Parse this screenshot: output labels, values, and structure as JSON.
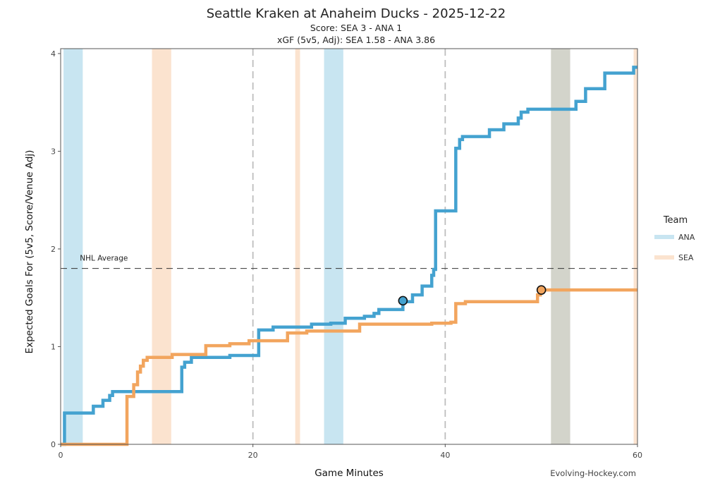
{
  "chart_data": {
    "type": "line",
    "title": "Seattle Kraken at Anaheim Ducks - 2025-12-22",
    "subtitle": "Score: SEA 3 - ANA 1",
    "subtitle2": "xGF (5v5, Adj): SEA 1.58 - ANA 3.86",
    "xlabel": "Game Minutes",
    "ylabel": "Expected Goals For (5v5, Score/Venue Adj)",
    "xlim": [
      0,
      60
    ],
    "ylim": [
      0,
      4.05
    ],
    "xticks": [
      0,
      20,
      40,
      60
    ],
    "yticks": [
      0,
      1,
      2,
      3,
      4
    ],
    "period_lines": [
      20,
      40
    ],
    "reference_line": {
      "label": "NHL Average",
      "y": 1.8
    },
    "legend": {
      "title": "Team",
      "position": "right"
    },
    "source": "Evolving-Hockey.com",
    "colors": {
      "ANA": "#44a2d0",
      "SEA": "#f2a55e",
      "ANA_band": "#c8e5f1",
      "SEA_band": "#fbe3cf",
      "both_band": "#d3d4cb"
    },
    "series": [
      {
        "name": "ANA",
        "steps": [
          [
            0,
            0
          ],
          [
            0.4,
            0.32
          ],
          [
            3.4,
            0.39
          ],
          [
            4.4,
            0.45
          ],
          [
            5.1,
            0.5
          ],
          [
            5.4,
            0.54
          ],
          [
            12.6,
            0.79
          ],
          [
            12.9,
            0.84
          ],
          [
            13.6,
            0.89
          ],
          [
            17.6,
            0.91
          ],
          [
            20.6,
            1.17
          ],
          [
            22.1,
            1.2
          ],
          [
            26.1,
            1.23
          ],
          [
            28.1,
            1.24
          ],
          [
            29.6,
            1.29
          ],
          [
            31.6,
            1.31
          ],
          [
            32.6,
            1.34
          ],
          [
            33.1,
            1.38
          ],
          [
            35.6,
            1.46
          ],
          [
            36.6,
            1.53
          ],
          [
            37.6,
            1.62
          ],
          [
            38.6,
            1.73
          ],
          [
            38.8,
            1.79
          ],
          [
            39.0,
            2.39
          ],
          [
            41.1,
            3.03
          ],
          [
            41.5,
            3.12
          ],
          [
            41.8,
            3.15
          ],
          [
            44.6,
            3.22
          ],
          [
            46.1,
            3.28
          ],
          [
            47.6,
            3.34
          ],
          [
            47.9,
            3.4
          ],
          [
            48.6,
            3.43
          ],
          [
            53.6,
            3.51
          ],
          [
            54.6,
            3.64
          ],
          [
            56.6,
            3.8
          ],
          [
            59.6,
            3.86
          ],
          [
            60,
            3.86
          ]
        ],
        "goals": [
          [
            35.6,
            1.47
          ]
        ]
      },
      {
        "name": "SEA",
        "steps": [
          [
            0,
            0
          ],
          [
            6.9,
            0.49
          ],
          [
            7.6,
            0.61
          ],
          [
            8.0,
            0.74
          ],
          [
            8.3,
            0.8
          ],
          [
            8.6,
            0.86
          ],
          [
            9.0,
            0.89
          ],
          [
            11.6,
            0.92
          ],
          [
            15.1,
            1.01
          ],
          [
            17.6,
            1.03
          ],
          [
            19.6,
            1.06
          ],
          [
            23.6,
            1.14
          ],
          [
            25.6,
            1.16
          ],
          [
            31.1,
            1.23
          ],
          [
            38.6,
            1.24
          ],
          [
            40.6,
            1.25
          ],
          [
            41.1,
            1.44
          ],
          [
            42.1,
            1.46
          ],
          [
            49.6,
            1.53
          ],
          [
            49.9,
            1.58
          ],
          [
            60,
            1.58
          ]
        ],
        "goals": [
          [
            50.0,
            1.58
          ]
        ]
      }
    ],
    "bands": [
      {
        "team": "ANA",
        "start": 0.3,
        "end": 2.3
      },
      {
        "team": "SEA",
        "start": 9.5,
        "end": 11.5
      },
      {
        "team": "SEA",
        "start": 24.4,
        "end": 24.9
      },
      {
        "team": "ANA",
        "start": 27.4,
        "end": 29.4
      },
      {
        "team": "both",
        "start": 51.0,
        "end": 53.0
      },
      {
        "team": "SEA",
        "start": 59.6,
        "end": 60.0
      }
    ]
  }
}
